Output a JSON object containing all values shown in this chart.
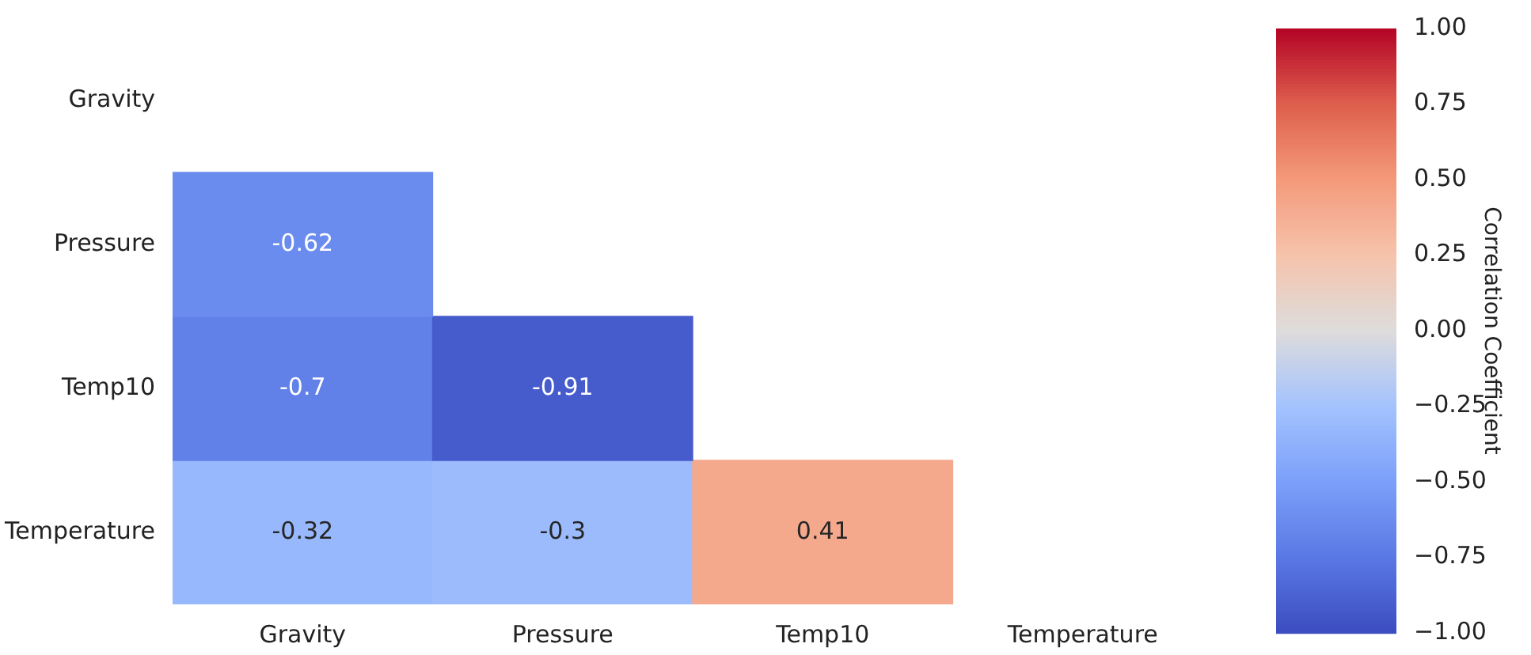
{
  "chart_data": {
    "type": "heatmap",
    "categories": [
      "Gravity",
      "Pressure",
      "Temp10",
      "Temperature"
    ],
    "y_categories": [
      "Gravity",
      "Pressure",
      "Temp10",
      "Temperature"
    ],
    "cells": [
      [
        null,
        null,
        null,
        null
      ],
      [
        -0.62,
        null,
        null,
        null
      ],
      [
        -0.7,
        -0.91,
        null,
        null
      ],
      [
        -0.32,
        -0.3,
        0.41,
        null
      ]
    ],
    "data_labels": true,
    "clabel": "Correlation Coefficient",
    "clim": [
      -1,
      1
    ],
    "cticks": [
      {
        "value": -1,
        "label": "−1.00"
      },
      {
        "value": -0.75,
        "label": "−0.75"
      },
      {
        "value": -0.5,
        "label": "−0.50"
      },
      {
        "value": -0.25,
        "label": "−0.25"
      },
      {
        "value": 0,
        "label": "0.00"
      },
      {
        "value": 0.25,
        "label": "0.25"
      },
      {
        "value": 0.5,
        "label": "0.50"
      },
      {
        "value": 0.75,
        "label": "0.75"
      },
      {
        "value": 1,
        "label": "1.00"
      }
    ],
    "grid": false,
    "legend": false
  }
}
